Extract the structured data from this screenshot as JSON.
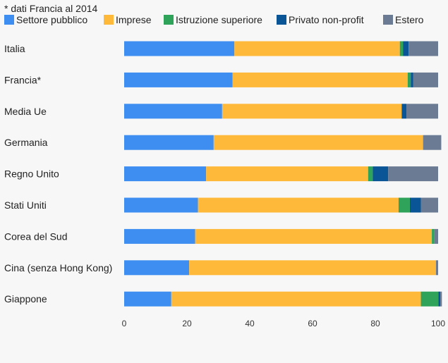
{
  "chart_data": {
    "type": "bar",
    "orientation": "horizontal",
    "stacked": true,
    "note": "* dati Francia al 2014",
    "categories": [
      "Italia",
      "Francia*",
      "Media Ue",
      "Germania",
      "Regno Unito",
      "Stati Uniti",
      "Corea del Sud",
      "Cina (senza Hong Kong)",
      "Giappone"
    ],
    "series": [
      {
        "name": "Settore pubblico",
        "color": "#3d8ef0",
        "values": [
          35.1,
          34.5,
          31.2,
          28.5,
          26.1,
          23.5,
          22.6,
          20.7,
          15.0
        ]
      },
      {
        "name": "Imprese",
        "color": "#ffb93a",
        "values": [
          52.7,
          55.8,
          57.2,
          66.7,
          51.6,
          63.9,
          75.4,
          78.6,
          79.5
        ]
      },
      {
        "name": "Istruzione superiore",
        "color": "#2fa35a",
        "values": [
          1.0,
          1.0,
          0.0,
          0.0,
          1.5,
          3.6,
          0.7,
          0.0,
          5.6
        ]
      },
      {
        "name": "Privato non-profit",
        "color": "#0a5596",
        "values": [
          1.8,
          0.8,
          1.5,
          0.0,
          4.9,
          3.5,
          0.0,
          0.0,
          0.6
        ]
      },
      {
        "name": "Estero",
        "color": "#6b7b93",
        "values": [
          9.4,
          7.9,
          10.1,
          5.8,
          15.9,
          5.5,
          1.3,
          0.7,
          0.5
        ]
      }
    ],
    "xlim": [
      0,
      100
    ],
    "xticks": [
      "0",
      "20",
      "40",
      "60",
      "80",
      "100"
    ],
    "legend_position": "top",
    "grid": false
  }
}
